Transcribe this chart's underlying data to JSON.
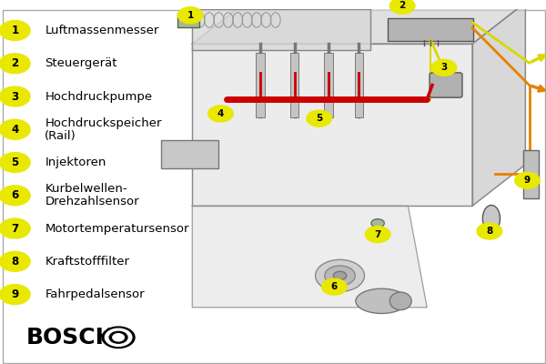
{
  "background_color": "#ffffff",
  "border_color": "#aaaaaa",
  "legend_items": [
    {
      "num": "1",
      "text": "Luftmassenmesser",
      "multiline": false
    },
    {
      "num": "2",
      "text": "Steuergerät",
      "multiline": false
    },
    {
      "num": "3",
      "text": "Hochdruckpumpe",
      "multiline": false
    },
    {
      "num": "4",
      "text": "Hochdruckspeicher",
      "text2": "(Rail)",
      "multiline": true
    },
    {
      "num": "5",
      "text": "Injektoren",
      "multiline": false
    },
    {
      "num": "6",
      "text": "Kurbelwellen-",
      "text2": "Drehzahlsensor",
      "multiline": true
    },
    {
      "num": "7",
      "text": "Motortemperatursensor",
      "multiline": false
    },
    {
      "num": "8",
      "text": "Kraftstofffilter",
      "multiline": false
    },
    {
      "num": "9",
      "text": "Fahrpedalsensor",
      "multiline": false
    }
  ],
  "badge_color": "#e8e800",
  "badge_text_color": "#000000",
  "text_color": "#000000",
  "bosch_text": "BOSCH",
  "label_fontsize": 9.5,
  "bosch_fontsize": 18,
  "red_line_color": "#cc0000",
  "yellow_line_color": "#d8d800",
  "orange_line_color": "#e88000"
}
